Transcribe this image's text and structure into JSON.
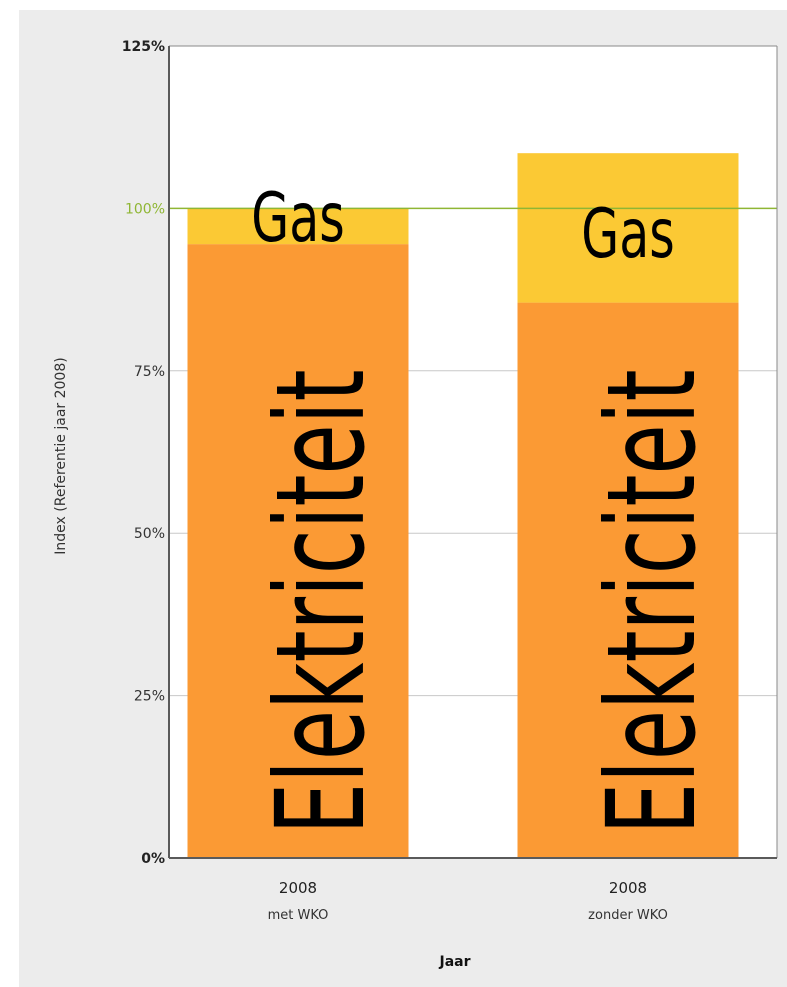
{
  "chart_data": {
    "type": "bar",
    "stacked": true,
    "title": "",
    "xlabel": "Jaar",
    "ylabel": "Index (Referentie jaar 2008)",
    "ylim": [
      0,
      125
    ],
    "yticks": [
      {
        "value": 0,
        "label": "0%"
      },
      {
        "value": 25,
        "label": "25%"
      },
      {
        "value": 50,
        "label": "50%"
      },
      {
        "value": 75,
        "label": "75%"
      },
      {
        "value": 100,
        "label": "100%"
      },
      {
        "value": 125,
        "label": "125%"
      }
    ],
    "reference_line": {
      "value": 100,
      "color": "#8fb634"
    },
    "grid": true,
    "categories": [
      {
        "line1": "2008",
        "line2": "met WKO"
      },
      {
        "line1": "2008",
        "line2": "zonder WKO"
      }
    ],
    "series": [
      {
        "name": "Elektriciteit",
        "color": "#fb9a34",
        "values": [
          94.5,
          85.5
        ]
      },
      {
        "name": "Gas",
        "color": "#fbc934",
        "values": [
          5.5,
          23
        ]
      }
    ],
    "annotations": {
      "gas": "Gas",
      "elektriciteit": "Elektriciteit"
    }
  }
}
